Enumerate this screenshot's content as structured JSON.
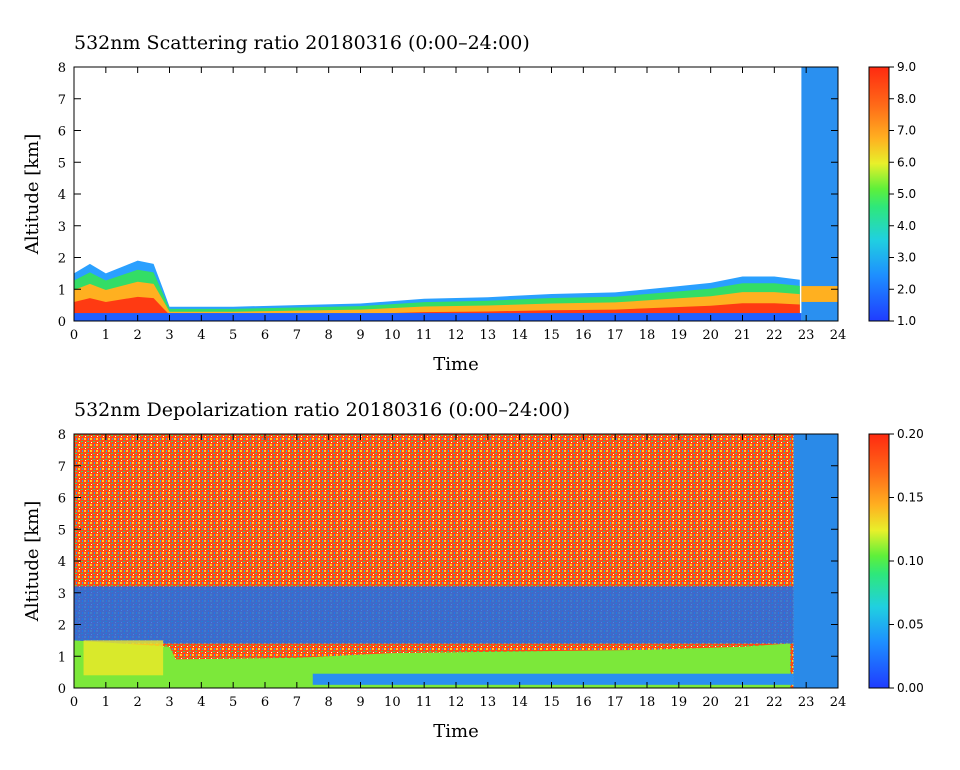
{
  "chart_data": [
    {
      "type": "heatmap",
      "title": "532nm Scattering ratio  20180316 (0:00–24:00)",
      "xlabel": "Time",
      "ylabel": "Altitude [km]",
      "xlim": [
        0,
        24
      ],
      "ylim": [
        0,
        8
      ],
      "x_ticks": [
        "0",
        "1",
        "2",
        "3",
        "4",
        "5",
        "6",
        "7",
        "8",
        "9",
        "10",
        "11",
        "12",
        "13",
        "14",
        "15",
        "16",
        "17",
        "18",
        "19",
        "20",
        "21",
        "22",
        "23",
        "24"
      ],
      "y_ticks": [
        "0",
        "1",
        "2",
        "3",
        "4",
        "5",
        "6",
        "7",
        "8"
      ],
      "colorbar": {
        "min": 1.0,
        "max": 9.0,
        "ticks": [
          "1.0",
          "2.0",
          "3.0",
          "4.0",
          "5.0",
          "6.0",
          "7.0",
          "8.0",
          "9.0"
        ]
      },
      "layer_top_km": [
        [
          0,
          1.5
        ],
        [
          0.5,
          1.8
        ],
        [
          1,
          1.5
        ],
        [
          1.5,
          1.7
        ],
        [
          2,
          1.9
        ],
        [
          2.5,
          1.8
        ],
        [
          2.8,
          1.0
        ],
        [
          3.0,
          0.45
        ],
        [
          3.5,
          0.45
        ],
        [
          5,
          0.45
        ],
        [
          7,
          0.5
        ],
        [
          9,
          0.55
        ],
        [
          11,
          0.7
        ],
        [
          13,
          0.75
        ],
        [
          15,
          0.85
        ],
        [
          17,
          0.9
        ],
        [
          19,
          1.1
        ],
        [
          20,
          1.2
        ],
        [
          21,
          1.4
        ],
        [
          22,
          1.4
        ],
        [
          22.8,
          1.3
        ]
      ],
      "cloud_column": {
        "start": 22.85,
        "end": 24,
        "top_km": 8
      }
    },
    {
      "type": "heatmap",
      "title": "532nm Depolarization ratio  20180316 (0:00–24:00)",
      "xlabel": "Time",
      "ylabel": "Altitude [km]",
      "xlim": [
        0,
        24
      ],
      "ylim": [
        0,
        8
      ],
      "x_ticks": [
        "0",
        "1",
        "2",
        "3",
        "4",
        "5",
        "6",
        "7",
        "8",
        "9",
        "10",
        "11",
        "12",
        "13",
        "14",
        "15",
        "16",
        "17",
        "18",
        "19",
        "20",
        "21",
        "22",
        "23",
        "24"
      ],
      "y_ticks": [
        "0",
        "1",
        "2",
        "3",
        "4",
        "5",
        "6",
        "7",
        "8"
      ],
      "colorbar": {
        "min": 0.0,
        "max": 0.2,
        "ticks": [
          "0.00",
          "0.05",
          "0.10",
          "0.15",
          "0.20"
        ]
      },
      "low_layer_top_km": [
        [
          0,
          1.5
        ],
        [
          3,
          1.3
        ],
        [
          3.2,
          0.9
        ],
        [
          7,
          0.95
        ],
        [
          10,
          1.1
        ],
        [
          14,
          1.15
        ],
        [
          18,
          1.2
        ],
        [
          21,
          1.3
        ],
        [
          22.5,
          1.4
        ]
      ],
      "cloud_column": {
        "start": 22.6,
        "end": 24,
        "top_km": 8
      }
    }
  ]
}
